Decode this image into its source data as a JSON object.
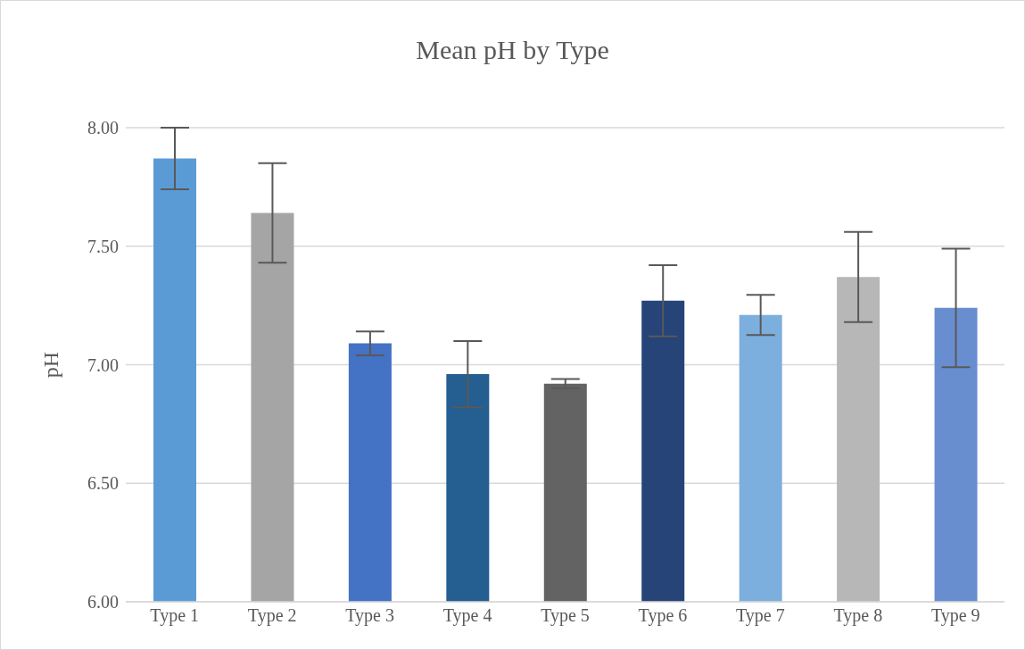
{
  "chart_data": {
    "type": "bar",
    "title": "Mean pH by Type",
    "ylabel": "pH",
    "categories": [
      "Type 1",
      "Type 2",
      "Type 3",
      "Type 4",
      "Type 5",
      "Type 6",
      "Type 7",
      "Type 8",
      "Type 9"
    ],
    "values": [
      7.87,
      7.64,
      7.09,
      6.96,
      6.92,
      7.27,
      7.21,
      7.37,
      7.24
    ],
    "errors": [
      0.13,
      0.21,
      0.05,
      0.14,
      0.02,
      0.15,
      0.085,
      0.19,
      0.25
    ],
    "colors": [
      "#5b9bd5",
      "#a5a5a5",
      "#4472c4",
      "#255e91",
      "#636363",
      "#264478",
      "#7cafdd",
      "#b7b7b7",
      "#698ed0"
    ],
    "ylim": [
      6,
      8
    ],
    "yticks": [
      {
        "value": 6,
        "label": "6.00"
      },
      {
        "value": 6.5,
        "label": "6.50"
      },
      {
        "value": 7,
        "label": "7.00"
      },
      {
        "value": 7.5,
        "label": "7.50"
      },
      {
        "value": 8,
        "label": "8.00"
      }
    ],
    "grid": "y"
  }
}
